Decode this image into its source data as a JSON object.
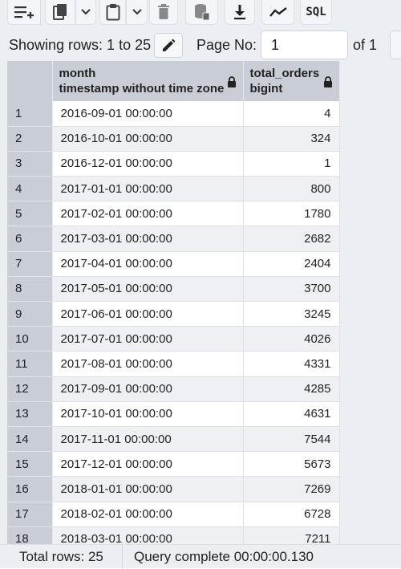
{
  "toolbar": {
    "buttons": [
      {
        "icon": "add-row-icon"
      },
      {
        "icon": "copy-icon"
      },
      {
        "icon": "paste-icon"
      },
      {
        "icon": "delete-icon"
      },
      {
        "icon": "save-data-icon"
      },
      {
        "icon": "download-icon"
      },
      {
        "icon": "graph-icon"
      },
      {
        "icon": "sql-icon",
        "label": "SQL"
      }
    ]
  },
  "pager": {
    "showing_label": "Showing rows: 1 to 25",
    "page_label": "Page No:",
    "page_value": "1",
    "of_label": "of 1"
  },
  "grid": {
    "columns": [
      {
        "name": "month",
        "type": "timestamp without time zone",
        "locked": true
      },
      {
        "name": "total_orders",
        "type": "bigint",
        "locked": true
      }
    ],
    "rows": [
      {
        "n": "1",
        "month": "2016-09-01 00:00:00",
        "total_orders": "4"
      },
      {
        "n": "2",
        "month": "2016-10-01 00:00:00",
        "total_orders": "324"
      },
      {
        "n": "3",
        "month": "2016-12-01 00:00:00",
        "total_orders": "1"
      },
      {
        "n": "4",
        "month": "2017-01-01 00:00:00",
        "total_orders": "800"
      },
      {
        "n": "5",
        "month": "2017-02-01 00:00:00",
        "total_orders": "1780"
      },
      {
        "n": "6",
        "month": "2017-03-01 00:00:00",
        "total_orders": "2682"
      },
      {
        "n": "7",
        "month": "2017-04-01 00:00:00",
        "total_orders": "2404"
      },
      {
        "n": "8",
        "month": "2017-05-01 00:00:00",
        "total_orders": "3700"
      },
      {
        "n": "9",
        "month": "2017-06-01 00:00:00",
        "total_orders": "3245"
      },
      {
        "n": "10",
        "month": "2017-07-01 00:00:00",
        "total_orders": "4026"
      },
      {
        "n": "11",
        "month": "2017-08-01 00:00:00",
        "total_orders": "4331"
      },
      {
        "n": "12",
        "month": "2017-09-01 00:00:00",
        "total_orders": "4285"
      },
      {
        "n": "13",
        "month": "2017-10-01 00:00:00",
        "total_orders": "4631"
      },
      {
        "n": "14",
        "month": "2017-11-01 00:00:00",
        "total_orders": "7544"
      },
      {
        "n": "15",
        "month": "2017-12-01 00:00:00",
        "total_orders": "5673"
      },
      {
        "n": "16",
        "month": "2018-01-01 00:00:00",
        "total_orders": "7269"
      },
      {
        "n": "17",
        "month": "2018-02-01 00:00:00",
        "total_orders": "6728"
      },
      {
        "n": "18",
        "month": "2018-03-01 00:00:00",
        "total_orders": "7211"
      }
    ]
  },
  "status": {
    "total_rows": "Total rows: 25",
    "query_status": "Query complete 00:00:00.130"
  }
}
